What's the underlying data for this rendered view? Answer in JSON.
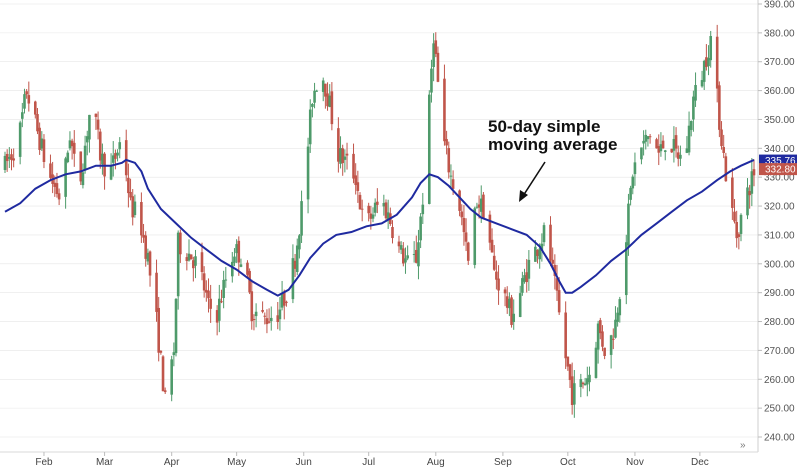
{
  "chart_data": {
    "type": "candlestick",
    "title": "",
    "xlabel": "",
    "ylabel": "",
    "y_axis_position": "right",
    "ylim": [
      236,
      391
    ],
    "y_ticks": [
      "240.00",
      "250.00",
      "260.00",
      "270.00",
      "280.00",
      "290.00",
      "300.00",
      "310.00",
      "320.00",
      "330.00",
      "340.00",
      "350.00",
      "360.00",
      "370.00",
      "380.00",
      "390.00"
    ],
    "x_ticks": [
      {
        "label": "Feb",
        "day": 18
      },
      {
        "label": "Mar",
        "day": 46
      },
      {
        "label": "Apr",
        "day": 77
      },
      {
        "label": "May",
        "day": 107
      },
      {
        "label": "Jun",
        "day": 138
      },
      {
        "label": "Jul",
        "day": 168
      },
      {
        "label": "Aug",
        "day": 199
      },
      {
        "label": "Sep",
        "day": 230
      },
      {
        "label": "Oct",
        "day": 260
      },
      {
        "label": "Nov",
        "day": 291
      },
      {
        "label": "Dec",
        "day": 321
      }
    ],
    "colors": {
      "up": "#4e9a6a",
      "down": "#c0554a",
      "ma": "#1f2aa0",
      "grid": "#e6e6e6"
    },
    "last_price_labels": [
      {
        "value": 335.76,
        "text": "335.76",
        "color": "#1f2aa0"
      },
      {
        "value": 332.8,
        "text": "332.80",
        "color": "#c0554a"
      }
    ],
    "annotation": {
      "lines": [
        "50-day simple",
        "moving average"
      ]
    },
    "nav_icon": "double-chevron-right-icon",
    "price_keys": [
      [
        0,
        334
      ],
      [
        6,
        342
      ],
      [
        10,
        360
      ],
      [
        16,
        343
      ],
      [
        20,
        331
      ],
      [
        26,
        322
      ],
      [
        30,
        345
      ],
      [
        34,
        325
      ],
      [
        40,
        357
      ],
      [
        44,
        338
      ],
      [
        48,
        330
      ],
      [
        54,
        344
      ],
      [
        58,
        320
      ],
      [
        62,
        316
      ],
      [
        66,
        302
      ],
      [
        70,
        280
      ],
      [
        74,
        252
      ],
      [
        78,
        270
      ],
      [
        80,
        307
      ],
      [
        86,
        303
      ],
      [
        90,
        298
      ],
      [
        94,
        285
      ],
      [
        98,
        283
      ],
      [
        102,
        295
      ],
      [
        106,
        305
      ],
      [
        110,
        302
      ],
      [
        114,
        284
      ],
      [
        120,
        281
      ],
      [
        126,
        283
      ],
      [
        130,
        290
      ],
      [
        134,
        302
      ],
      [
        138,
        325
      ],
      [
        142,
        358
      ],
      [
        146,
        368
      ],
      [
        150,
        355
      ],
      [
        154,
        338
      ],
      [
        158,
        335
      ],
      [
        162,
        330
      ],
      [
        166,
        312
      ],
      [
        170,
        318
      ],
      [
        174,
        322
      ],
      [
        178,
        315
      ],
      [
        182,
        305
      ],
      [
        186,
        300
      ],
      [
        190,
        302
      ],
      [
        194,
        330
      ],
      [
        198,
        380
      ],
      [
        202,
        345
      ],
      [
        206,
        330
      ],
      [
        210,
        320
      ],
      [
        214,
        300
      ],
      [
        218,
        322
      ],
      [
        222,
        318
      ],
      [
        226,
        297
      ],
      [
        230,
        290
      ],
      [
        234,
        282
      ],
      [
        238,
        290
      ],
      [
        242,
        300
      ],
      [
        246,
        306
      ],
      [
        250,
        312
      ],
      [
        254,
        292
      ],
      [
        258,
        272
      ],
      [
        262,
        255
      ],
      [
        266,
        258
      ],
      [
        270,
        262
      ],
      [
        274,
        278
      ],
      [
        278,
        268
      ],
      [
        282,
        280
      ],
      [
        286,
        303
      ],
      [
        290,
        332
      ],
      [
        294,
        340
      ],
      [
        298,
        345
      ],
      [
        302,
        338
      ],
      [
        306,
        344
      ],
      [
        310,
        338
      ],
      [
        314,
        336
      ],
      [
        318,
        357
      ],
      [
        322,
        366
      ],
      [
        326,
        378
      ],
      [
        330,
        350
      ],
      [
        334,
        325
      ],
      [
        338,
        310
      ],
      [
        342,
        322
      ],
      [
        346,
        332
      ]
    ],
    "ma_50": [
      [
        0,
        318
      ],
      [
        7,
        321
      ],
      [
        14,
        326
      ],
      [
        21,
        329
      ],
      [
        28,
        331
      ],
      [
        35,
        332
      ],
      [
        42,
        334
      ],
      [
        49,
        334
      ],
      [
        54,
        335
      ],
      [
        56,
        336
      ],
      [
        60,
        335
      ],
      [
        63,
        332
      ],
      [
        66,
        326
      ],
      [
        72,
        319
      ],
      [
        79,
        314
      ],
      [
        86,
        309
      ],
      [
        93,
        305
      ],
      [
        100,
        301
      ],
      [
        107,
        298
      ],
      [
        114,
        294
      ],
      [
        121,
        291
      ],
      [
        126,
        289
      ],
      [
        131,
        291
      ],
      [
        136,
        296
      ],
      [
        141,
        302
      ],
      [
        147,
        307
      ],
      [
        153,
        310
      ],
      [
        160,
        311
      ],
      [
        167,
        313
      ],
      [
        174,
        314
      ],
      [
        181,
        317
      ],
      [
        188,
        323
      ],
      [
        192,
        328
      ],
      [
        196,
        331
      ],
      [
        200,
        330
      ],
      [
        205,
        327
      ],
      [
        210,
        323
      ],
      [
        215,
        319
      ],
      [
        220,
        316
      ],
      [
        227,
        314
      ],
      [
        234,
        312
      ],
      [
        241,
        310
      ],
      [
        247,
        306
      ],
      [
        252,
        300
      ],
      [
        256,
        294
      ],
      [
        259,
        290
      ],
      [
        262,
        290
      ],
      [
        266,
        292
      ],
      [
        273,
        296
      ],
      [
        280,
        301
      ],
      [
        287,
        305
      ],
      [
        294,
        310
      ],
      [
        301,
        314
      ],
      [
        308,
        318
      ],
      [
        315,
        322
      ],
      [
        322,
        325
      ],
      [
        329,
        329
      ],
      [
        335,
        332
      ],
      [
        340,
        334
      ],
      [
        346,
        336
      ]
    ]
  }
}
